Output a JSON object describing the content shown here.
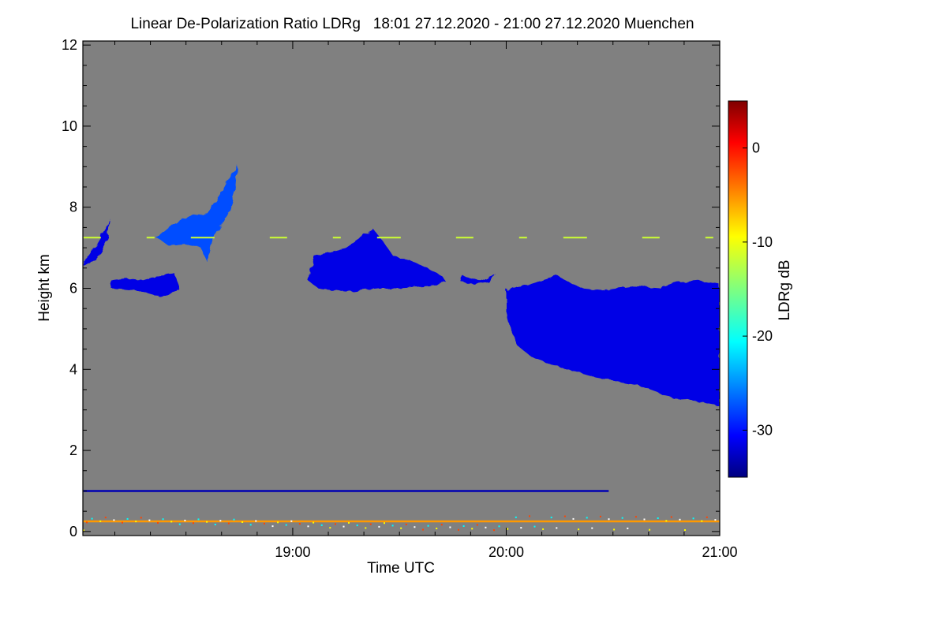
{
  "chart_data": {
    "type": "heatmap",
    "title": "Linear De-Polarization Ratio LDRg   18:01 27.12.2020 - 21:00 27.12.2020 Muenchen",
    "xlabel": "Time UTC",
    "ylabel": "Height km",
    "x_range_hours": [
      18.017,
      21.0
    ],
    "y_range_km": [
      -0.1,
      12.1
    ],
    "x_ticks": [
      {
        "label": "19:00",
        "value": 19.0
      },
      {
        "label": "20:00",
        "value": 20.0
      },
      {
        "label": "21:00",
        "value": 21.0
      }
    ],
    "y_ticks": [
      {
        "label": "0",
        "value": 0
      },
      {
        "label": "2",
        "value": 2
      },
      {
        "label": "4",
        "value": 4
      },
      {
        "label": "6",
        "value": 6
      },
      {
        "label": "8",
        "value": 8
      },
      {
        "label": "10",
        "value": 10
      },
      {
        "label": "12",
        "value": 12
      }
    ],
    "colorbar": {
      "label": "LDRg dB",
      "range": [
        -35,
        5
      ],
      "ticks": [
        {
          "label": "0",
          "value": 0
        },
        {
          "label": "-10",
          "value": -10
        },
        {
          "label": "-20",
          "value": -20
        },
        {
          "label": "-30",
          "value": -30
        }
      ]
    },
    "background_color": "#808080",
    "cloud_regions": [
      {
        "name": "high-cirrus-west",
        "t": [
          18.02,
          18.15
        ],
        "h": [
          6.6,
          7.8
        ],
        "ldr_db": -30
      },
      {
        "name": "mid-layer-west",
        "t": [
          18.15,
          18.47
        ],
        "h": [
          5.8,
          6.3
        ],
        "ldr_db": -32
      },
      {
        "name": "fall-streak",
        "t": [
          18.35,
          18.75
        ],
        "h": [
          6.8,
          9.0
        ],
        "ldr_db": -27
      },
      {
        "name": "cloud-1930",
        "t": [
          19.07,
          19.72
        ],
        "h": [
          5.9,
          7.5
        ],
        "ldr_db": -30
      },
      {
        "name": "thick-cloud-east",
        "t": [
          20.0,
          21.0
        ],
        "h": [
          3.1,
          6.2
        ],
        "ldr_db": -31
      }
    ],
    "lines": [
      {
        "name": "boundary-layer-line",
        "h": 1.0,
        "t": [
          18.02,
          20.48
        ],
        "ldr_db": -33
      },
      {
        "name": "surface-line",
        "h": 0.25,
        "t": [
          18.02,
          21.0
        ],
        "ldr_db": -6
      },
      {
        "name": "artifact-line",
        "h": 7.25,
        "t": [
          18.02,
          21.0
        ],
        "ldr_db": -12
      }
    ]
  }
}
